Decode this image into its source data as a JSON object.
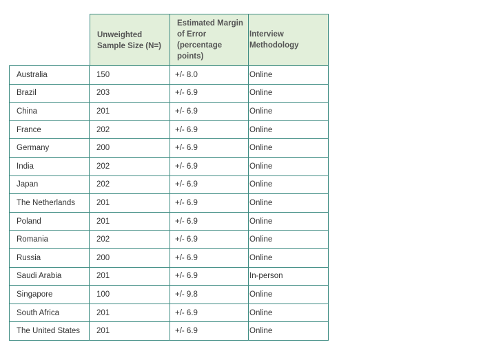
{
  "headers": {
    "sample_size": "Unweighted Sample Size (N=)",
    "margin": "Estimated Margin of Error (percentage points)",
    "method": "Interview Methodology"
  },
  "rows": [
    {
      "country": "Australia",
      "n": "150",
      "moe": "+/- 8.0",
      "method": "Online"
    },
    {
      "country": "Brazil",
      "n": "203",
      "moe": "+/- 6.9",
      "method": "Online"
    },
    {
      "country": "China",
      "n": "201",
      "moe": "+/- 6.9",
      "method": "Online"
    },
    {
      "country": "France",
      "n": "202",
      "moe": "+/- 6.9",
      "method": "Online"
    },
    {
      "country": "Germany",
      "n": "200",
      "moe": "+/- 6.9",
      "method": "Online"
    },
    {
      "country": "India",
      "n": "202",
      "moe": "+/- 6.9",
      "method": "Online"
    },
    {
      "country": "Japan",
      "n": "202",
      "moe": "+/- 6.9",
      "method": "Online"
    },
    {
      "country": "The Netherlands",
      "n": "201",
      "moe": "+/- 6.9",
      "method": "Online"
    },
    {
      "country": "Poland",
      "n": "201",
      "moe": "+/- 6.9",
      "method": "Online"
    },
    {
      "country": "Romania",
      "n": "202",
      "moe": "+/- 6.9",
      "method": "Online"
    },
    {
      "country": "Russia",
      "n": "200",
      "moe": "+/- 6.9",
      "method": "Online"
    },
    {
      "country": "Saudi Arabia",
      "n": "201",
      "moe": "+/- 6.9",
      "method": "In-person"
    },
    {
      "country": "Singapore",
      "n": "100",
      "moe": "+/- 9.8",
      "method": "Online"
    },
    {
      "country": "South Africa",
      "n": "201",
      "moe": "+/- 6.9",
      "method": "Online"
    },
    {
      "country": "The United States",
      "n": "201",
      "moe": "+/- 6.9",
      "method": "Online"
    }
  ]
}
